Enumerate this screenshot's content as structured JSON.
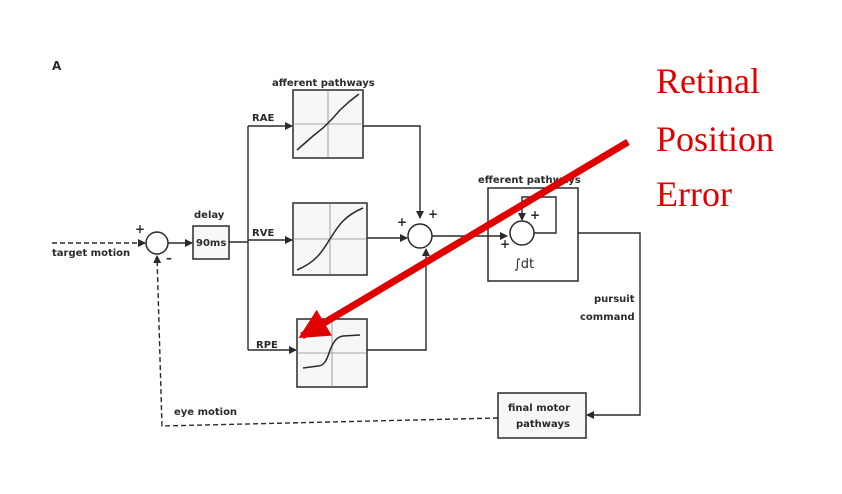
{
  "panel_label": "A",
  "inputs": {
    "target": "target motion",
    "feedback": "eye motion"
  },
  "delay_block": {
    "title": "delay",
    "value": "90ms"
  },
  "afferent_title": "afferent pathways",
  "channels": {
    "rae": "RAE",
    "rve": "RVE",
    "rpe": "RPE"
  },
  "efferent_title": "efferent pathways",
  "integrator_label": "∫dt",
  "pursuit_label": {
    "line1": "pursuit",
    "line2": "command"
  },
  "final_block": {
    "line1": "final motor",
    "line2": "pathways"
  },
  "signs": {
    "plus": "+",
    "minus": "–"
  },
  "annotation": {
    "line1": "Retinal",
    "line2": "Position",
    "line3": "Error"
  },
  "colors": {
    "ink": "#2a2a2a",
    "accent": "#e00000",
    "box_fill": "#f7f7f7"
  }
}
